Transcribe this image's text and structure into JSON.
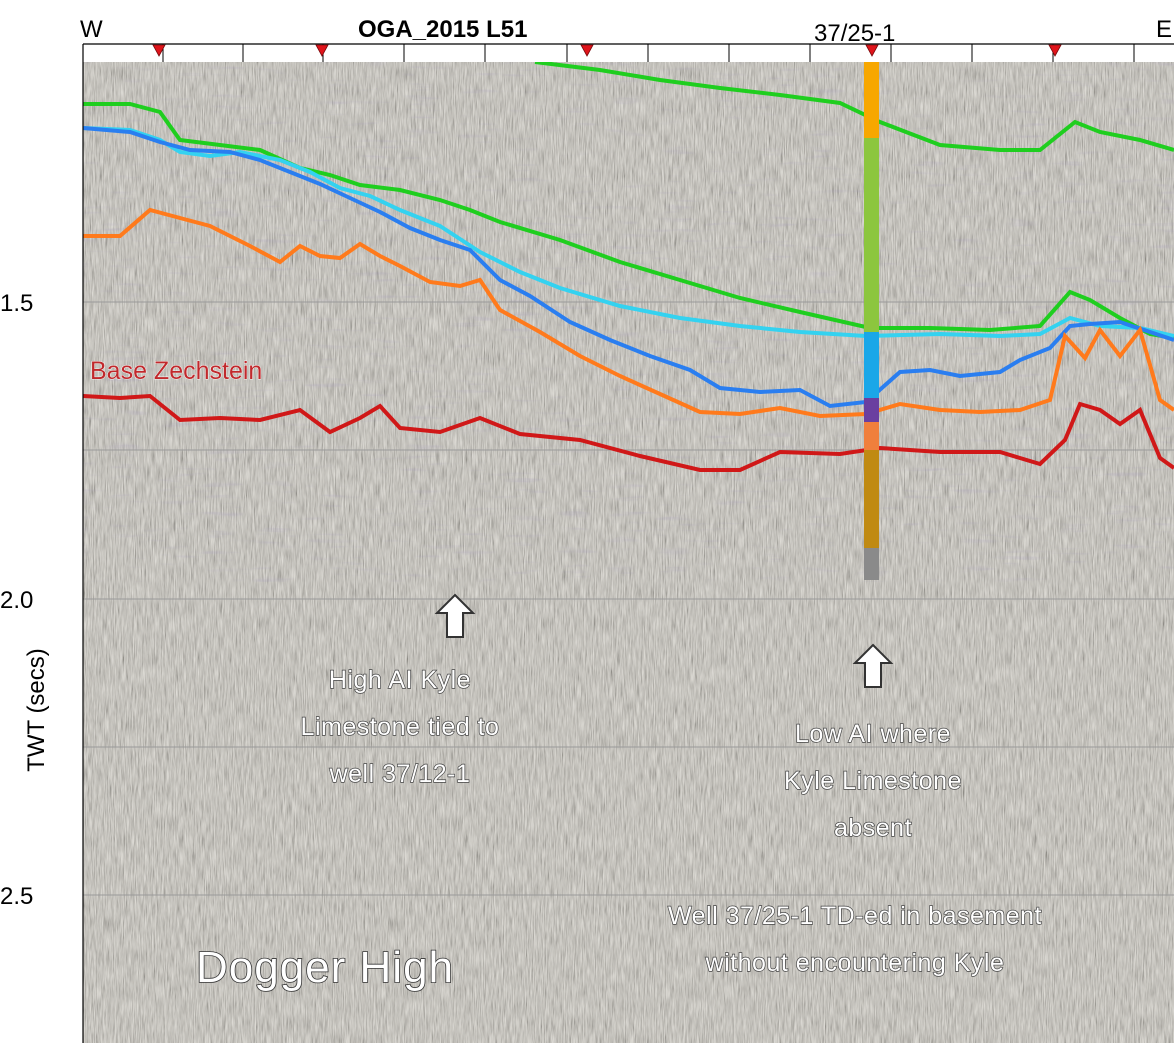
{
  "header": {
    "west": "W",
    "east": "E",
    "line_name": "OGA_2015 L51",
    "well_name": "37/25-1"
  },
  "axis": {
    "ylabel": "TWT (secs)",
    "ticks": [
      "1.5",
      "2.0",
      "2.5"
    ]
  },
  "annotations": {
    "base_zechstein": "Base Zechstein",
    "high_ai": [
      "High AI Kyle",
      "Limestone tied to",
      "well 37/12-1"
    ],
    "low_ai": [
      "Low AI where",
      "Kyle Limestone",
      "absent"
    ],
    "td": [
      "Well 37/25-1 TD-ed in basement",
      "without encountering Kyle"
    ],
    "dogger_high": "Dogger High"
  },
  "icons": {
    "arrow_up": "arrow-up-icon",
    "shotpoint_marker": "red-triangle-marker-icon"
  },
  "colors": {
    "horizon_green": "#1fce1f",
    "horizon_cyan": "#34d2f0",
    "horizon_blue": "#2a7ef0",
    "horizon_orange": "#ff7a1c",
    "horizon_red": "#d01818",
    "marker_red": "#e0141b",
    "well_column": [
      "#f7a700",
      "#8cc63e",
      "#1aa7e8",
      "#6a3fa0",
      "#f07f3c",
      "#c08a12",
      "#8a8a8a"
    ]
  }
}
